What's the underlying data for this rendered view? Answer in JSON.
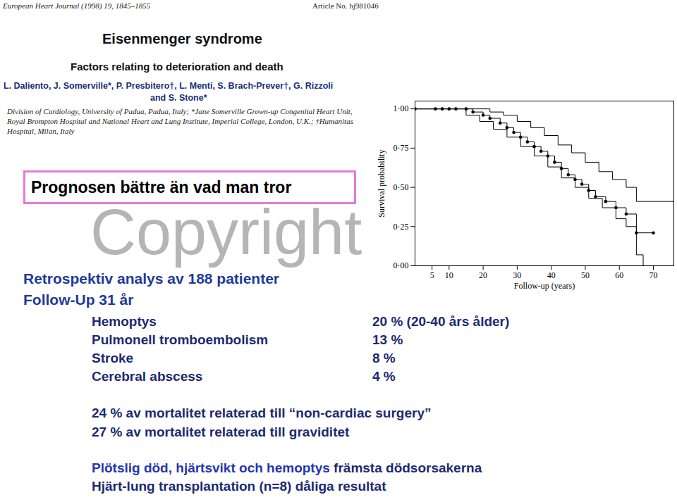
{
  "header": {
    "journal": "European Heart Journal (1998) 19, 1845–1855",
    "article": "Article No. hj981046",
    "title": "Eisenmenger syndrome",
    "subtitle": "Factors relating to deterioration and death",
    "authors": [
      "L. Daliento, J. Somerville*, P. Presbitero†, L. Menti, S. Brach-Prever†, G. Rizzoli",
      "and S. Stone*"
    ],
    "affiliation": [
      "Division of Cardiology, University of Padua, Padua, Italy; *Jane Somerville Grown-up Congenital Heart Unit,",
      "Royal Brompton Hospital and National Heart and Lung Institute, Imperial College, London, U.K.; †Humanitas",
      "Hospital, Milan, Italy"
    ]
  },
  "highlight": "Prognosen bättre än vad man tror",
  "watermark": "Copyright",
  "chart_data": {
    "type": "line",
    "xlabel": "Follow-up (years)",
    "ylabel": "Survival probability",
    "xlim": [
      0,
      76
    ],
    "ylim": [
      0,
      1.05
    ],
    "xticks": [
      5,
      10,
      20,
      30,
      40,
      50,
      60,
      70
    ],
    "yticks": [
      {
        "value": 0,
        "label": "0·00"
      },
      {
        "value": 0.25,
        "label": "0·25"
      },
      {
        "value": 0.5,
        "label": "0·50"
      },
      {
        "value": 0.75,
        "label": "0·75"
      },
      {
        "value": 1,
        "label": "1·00"
      }
    ],
    "line_style": "step",
    "series": [
      {
        "color": "#000000",
        "marker": "circle",
        "x": [
          0,
          6,
          8,
          10,
          12,
          15,
          17,
          20,
          22,
          25,
          27,
          29,
          31,
          33,
          35,
          37,
          39,
          41,
          43,
          45,
          47,
          49,
          51,
          53,
          56,
          59,
          62,
          65,
          70
        ],
        "values": [
          1,
          1,
          1,
          1,
          1,
          1,
          0.98,
          0.96,
          0.94,
          0.91,
          0.88,
          0.85,
          0.82,
          0.79,
          0.76,
          0.73,
          0.7,
          0.66,
          0.62,
          0.58,
          0.55,
          0.52,
          0.48,
          0.44,
          0.41,
          0.37,
          0.33,
          0.21,
          0.21
        ]
      },
      {
        "color": "#000000",
        "x": [
          0,
          18,
          22,
          26,
          30,
          34,
          38,
          42,
          46,
          50,
          54,
          58,
          62,
          65,
          76
        ],
        "values": [
          1,
          1,
          0.98,
          0.96,
          0.92,
          0.88,
          0.83,
          0.77,
          0.72,
          0.66,
          0.6,
          0.55,
          0.5,
          0.41,
          0.41
        ]
      },
      {
        "color": "#000000",
        "x": [
          0,
          12,
          15,
          19,
          23,
          27,
          31,
          35,
          39,
          43,
          47,
          51,
          55,
          59,
          62,
          65,
          67
        ],
        "values": [
          1,
          1,
          0.96,
          0.92,
          0.87,
          0.82,
          0.76,
          0.7,
          0.63,
          0.56,
          0.5,
          0.43,
          0.37,
          0.3,
          0.25,
          0.07,
          0
        ]
      }
    ]
  },
  "summary": {
    "intro": [
      "Retrospektiv analys av 188 patienter",
      "Follow-Up 31 år"
    ],
    "complications": [
      {
        "label": "Hemoptys",
        "value": "20 % (20-40 års ålder)"
      },
      {
        "label": "Pulmonell tromboembolism",
        "value": "13 %"
      },
      {
        "label": "Stroke",
        "value": "8 %"
      },
      {
        "label": "Cerebral abscess",
        "value": "4 %"
      }
    ],
    "mortality": [
      "24 % av mortalitet relaterad till “non-cardiac surgery”",
      "27 % av mortalitet relaterad till graviditet"
    ],
    "causes": {
      "highlight": "Plötslig död, hjärtsvikt och hemoptys",
      "rest": "främsta dödsorsakerna"
    },
    "transplant": "Hjärt-lung transplantation (n=8) dåliga resultat"
  }
}
